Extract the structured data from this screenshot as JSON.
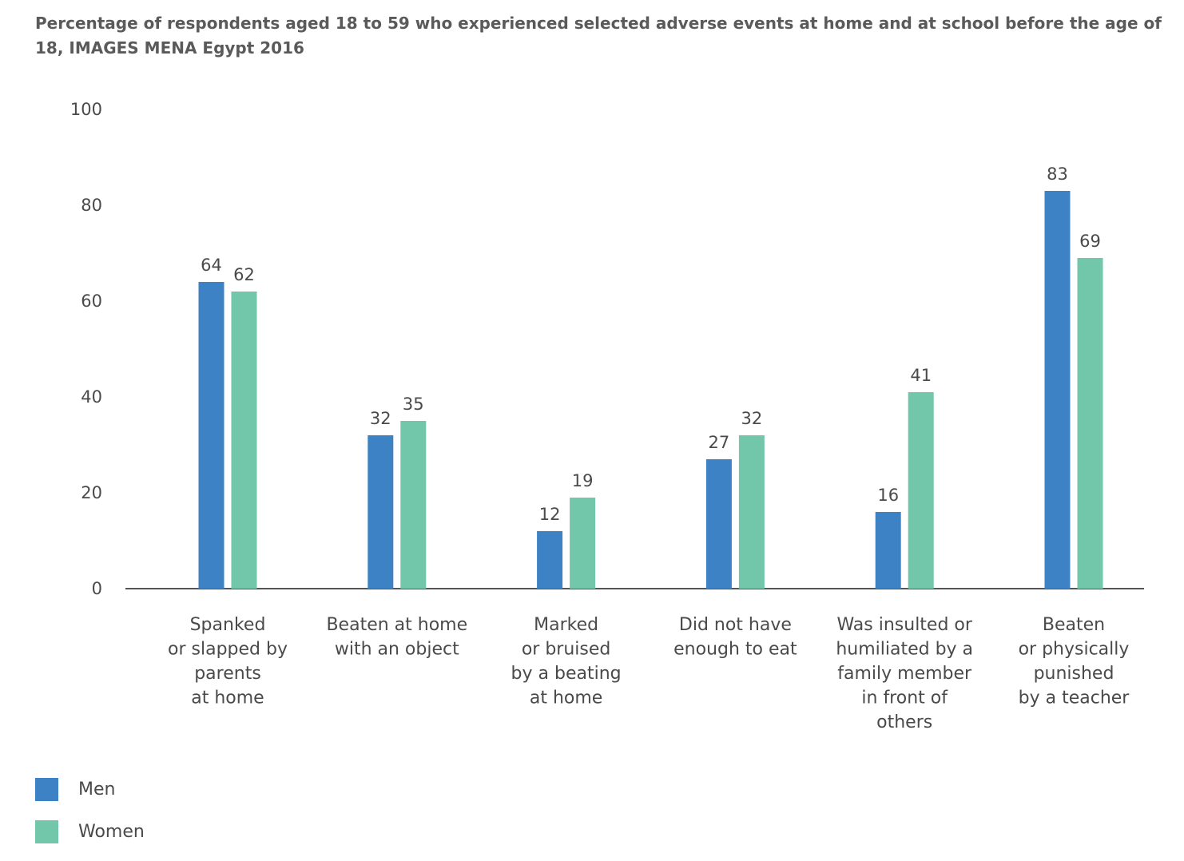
{
  "colors": {
    "men": "#3d82c4",
    "women": "#72c6aa",
    "axis": "#555555"
  },
  "chart_data": {
    "type": "bar",
    "title": "Percentage of respondents aged 18 to 59 who experienced selected adverse events at home and at school before the age of 18, IMAGES MENA Egypt 2016",
    "categories": [
      [
        "Spanked",
        "or slapped by",
        "parents",
        "at home"
      ],
      [
        "Beaten at home",
        "with an object"
      ],
      [
        "Marked",
        "or bruised",
        "by a beating",
        "at home"
      ],
      [
        "Did not have",
        "enough to eat"
      ],
      [
        "Was insulted or",
        "humiliated by a",
        "family member",
        "in front of",
        "others"
      ],
      [
        "Beaten",
        "or physically",
        "punished",
        "by a teacher"
      ]
    ],
    "series": [
      {
        "name": "Men",
        "values": [
          64,
          32,
          12,
          27,
          16,
          83
        ]
      },
      {
        "name": "Women",
        "values": [
          62,
          35,
          19,
          32,
          41,
          69
        ]
      }
    ],
    "ylim": [
      0,
      100
    ],
    "yticks": [
      "0",
      "20",
      "40",
      "60",
      "80",
      "100"
    ],
    "grid": false,
    "legend_position": "bottom-left"
  }
}
